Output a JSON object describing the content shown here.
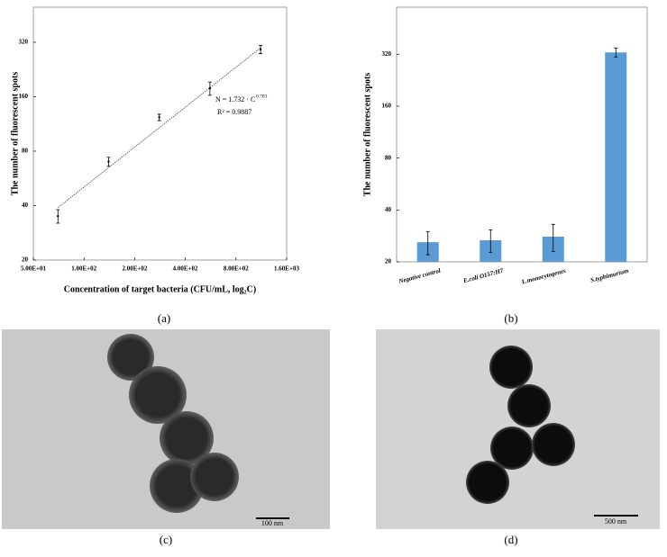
{
  "figure": {
    "panel_labels": [
      "(a)",
      "(b)",
      "(c)",
      "(d)"
    ],
    "scale_bars": [
      "100 nm",
      "500 nm"
    ]
  },
  "chart_data": [
    {
      "type": "scatter",
      "x_label": "Concentration of  target bacteria (CFU/mL, log₂C)",
      "y_label": "The number of fluorescent spots",
      "x": [
        70,
        140,
        280,
        560,
        1120
      ],
      "values": [
        35,
        70,
        123,
        178,
        292
      ],
      "errors": [
        3,
        4,
        5,
        15,
        15
      ],
      "color": "#000000",
      "fit": {
        "x": [
          70,
          1120
        ],
        "values": [
          39,
          298
        ],
        "color": "#444444"
      },
      "annotations": [
        "N = 1.732 · C",
        "0.783",
        "R² = 0.9887"
      ],
      "xlog": true,
      "ylog": true,
      "xlim": [
        50,
        1600
      ],
      "ylim": [
        20,
        500
      ],
      "xticks": [
        {
          "value": 50,
          "label": "5.00E+01"
        },
        {
          "value": 100,
          "label": "1.00E+02"
        },
        {
          "value": 200,
          "label": "2.00E+02"
        },
        {
          "value": 400,
          "label": "4.00E+02"
        },
        {
          "value": 800,
          "label": "8.00E+02"
        },
        {
          "value": 1600,
          "label": "1.60E+03"
        }
      ],
      "yticks": [
        20,
        40,
        80,
        160,
        320
      ]
    },
    {
      "type": "bar",
      "y_label": "The number of fluorescent spots",
      "categories": [
        "Negative control",
        "E.coli O157:H7",
        "L.monocytogenes",
        "S.typhimurium"
      ],
      "values": [
        26,
        26.7,
        28,
        328
      ],
      "errors": [
        4,
        4,
        5,
        20
      ],
      "color": "#5b9bd5",
      "ylog": true,
      "ylim": [
        20,
        600
      ],
      "yticks": [
        20,
        40,
        80,
        160,
        320
      ]
    }
  ]
}
